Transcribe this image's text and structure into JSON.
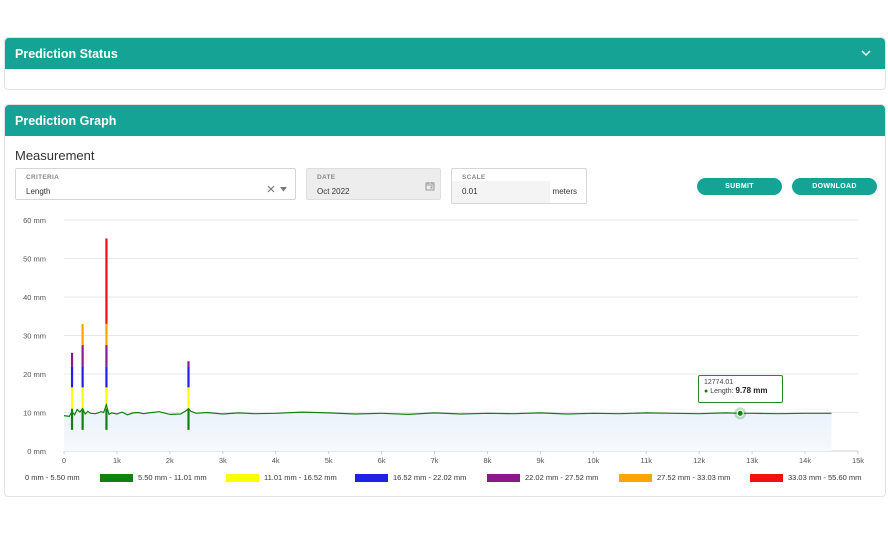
{
  "status_panel": {
    "title": "Prediction Status"
  },
  "graph_panel": {
    "title": "Prediction Graph",
    "section_title": "Measurement",
    "criteria": {
      "label": "CRITERIA",
      "value": "Length"
    },
    "date": {
      "label": "DATE",
      "value": "Oct 2022"
    },
    "scale": {
      "label": "SCALE",
      "value": "0.01",
      "unit": "meters"
    },
    "submit_label": "SUBMIT",
    "download_label": "DOWNLOAD"
  },
  "tooltip": {
    "x_label": "12774.01",
    "series_label": "Length:",
    "value_label": "9.78 mm"
  },
  "legend": [
    {
      "label": "0 mm - 5.50 mm",
      "color": ""
    },
    {
      "label": "5.50 mm - 11.01 mm",
      "color": "#118211"
    },
    {
      "label": "11.01 mm - 16.52 mm",
      "color": "#ffff00"
    },
    {
      "label": "16.52 mm - 22.02 mm",
      "color": "#2020e8"
    },
    {
      "label": "22.02 mm - 27.52 mm",
      "color": "#8a1a8a"
    },
    {
      "label": "27.52 mm - 33.03 mm",
      "color": "#ffa500"
    },
    {
      "label": "33.03 mm - 55.60 mm",
      "color": "#ee1111"
    }
  ],
  "colors": {
    "accent": "#15a396",
    "line": "#118211"
  },
  "icons": {
    "collapse": "chevron-down-icon",
    "clear": "close-icon",
    "dropdown": "caret-down-icon",
    "calendar": "calendar-icon"
  },
  "chart_data": {
    "type": "line",
    "x_ticks": [
      "0",
      "1k",
      "2k",
      "3k",
      "4k",
      "5k",
      "6k",
      "7k",
      "8k",
      "9k",
      "10k",
      "11k",
      "12k",
      "13k",
      "14k",
      "15k"
    ],
    "y_ticks": [
      "0 mm",
      "10 mm",
      "20 mm",
      "30 mm",
      "40 mm",
      "50 mm",
      "60 mm"
    ],
    "xlim": [
      0,
      15000
    ],
    "ylim": [
      0,
      60
    ],
    "grid": true,
    "baseline_mm": 9.8,
    "x_end": 14500,
    "series": [
      {
        "name": "Length",
        "x": [
          0,
          100,
          150,
          200,
          250,
          300,
          350,
          400,
          450,
          500,
          600,
          700,
          750,
          800,
          850,
          900,
          1000,
          1100,
          1200,
          1300,
          1400,
          1500,
          1600,
          1800,
          2000,
          2200,
          2300,
          2350,
          2400,
          2500,
          2700,
          3000,
          3300,
          3600,
          4000,
          4500,
          5000,
          5500,
          6000,
          6500,
          7000,
          7500,
          8000,
          8500,
          9000,
          9500,
          10000,
          10500,
          11000,
          11500,
          12000,
          12500,
          12774,
          13000,
          13500,
          14000,
          14500
        ],
        "y": [
          9.2,
          9.0,
          10.2,
          9.4,
          10.8,
          10.1,
          11.0,
          9.6,
          10.3,
          9.8,
          9.7,
          10.2,
          10.0,
          12.0,
          9.5,
          9.9,
          9.6,
          10.1,
          9.4,
          9.9,
          10.0,
          9.7,
          9.9,
          10.2,
          9.5,
          9.6,
          10.4,
          11.0,
          10.3,
          9.8,
          10.0,
          9.6,
          9.9,
          9.7,
          9.8,
          10.1,
          9.9,
          9.6,
          9.8,
          9.5,
          9.9,
          9.6,
          9.8,
          9.7,
          9.9,
          9.6,
          9.8,
          9.7,
          9.9,
          9.8,
          9.7,
          9.9,
          9.78,
          9.8,
          9.7,
          9.8,
          9.8
        ]
      }
    ],
    "spikes": [
      {
        "x": 150,
        "max": 25.5
      },
      {
        "x": 350,
        "max": 33.0
      },
      {
        "x": 800,
        "max": 55.2
      },
      {
        "x": 2350,
        "max": 23.3
      }
    ],
    "highlight": {
      "x": 12774.01,
      "y": 9.78
    }
  }
}
